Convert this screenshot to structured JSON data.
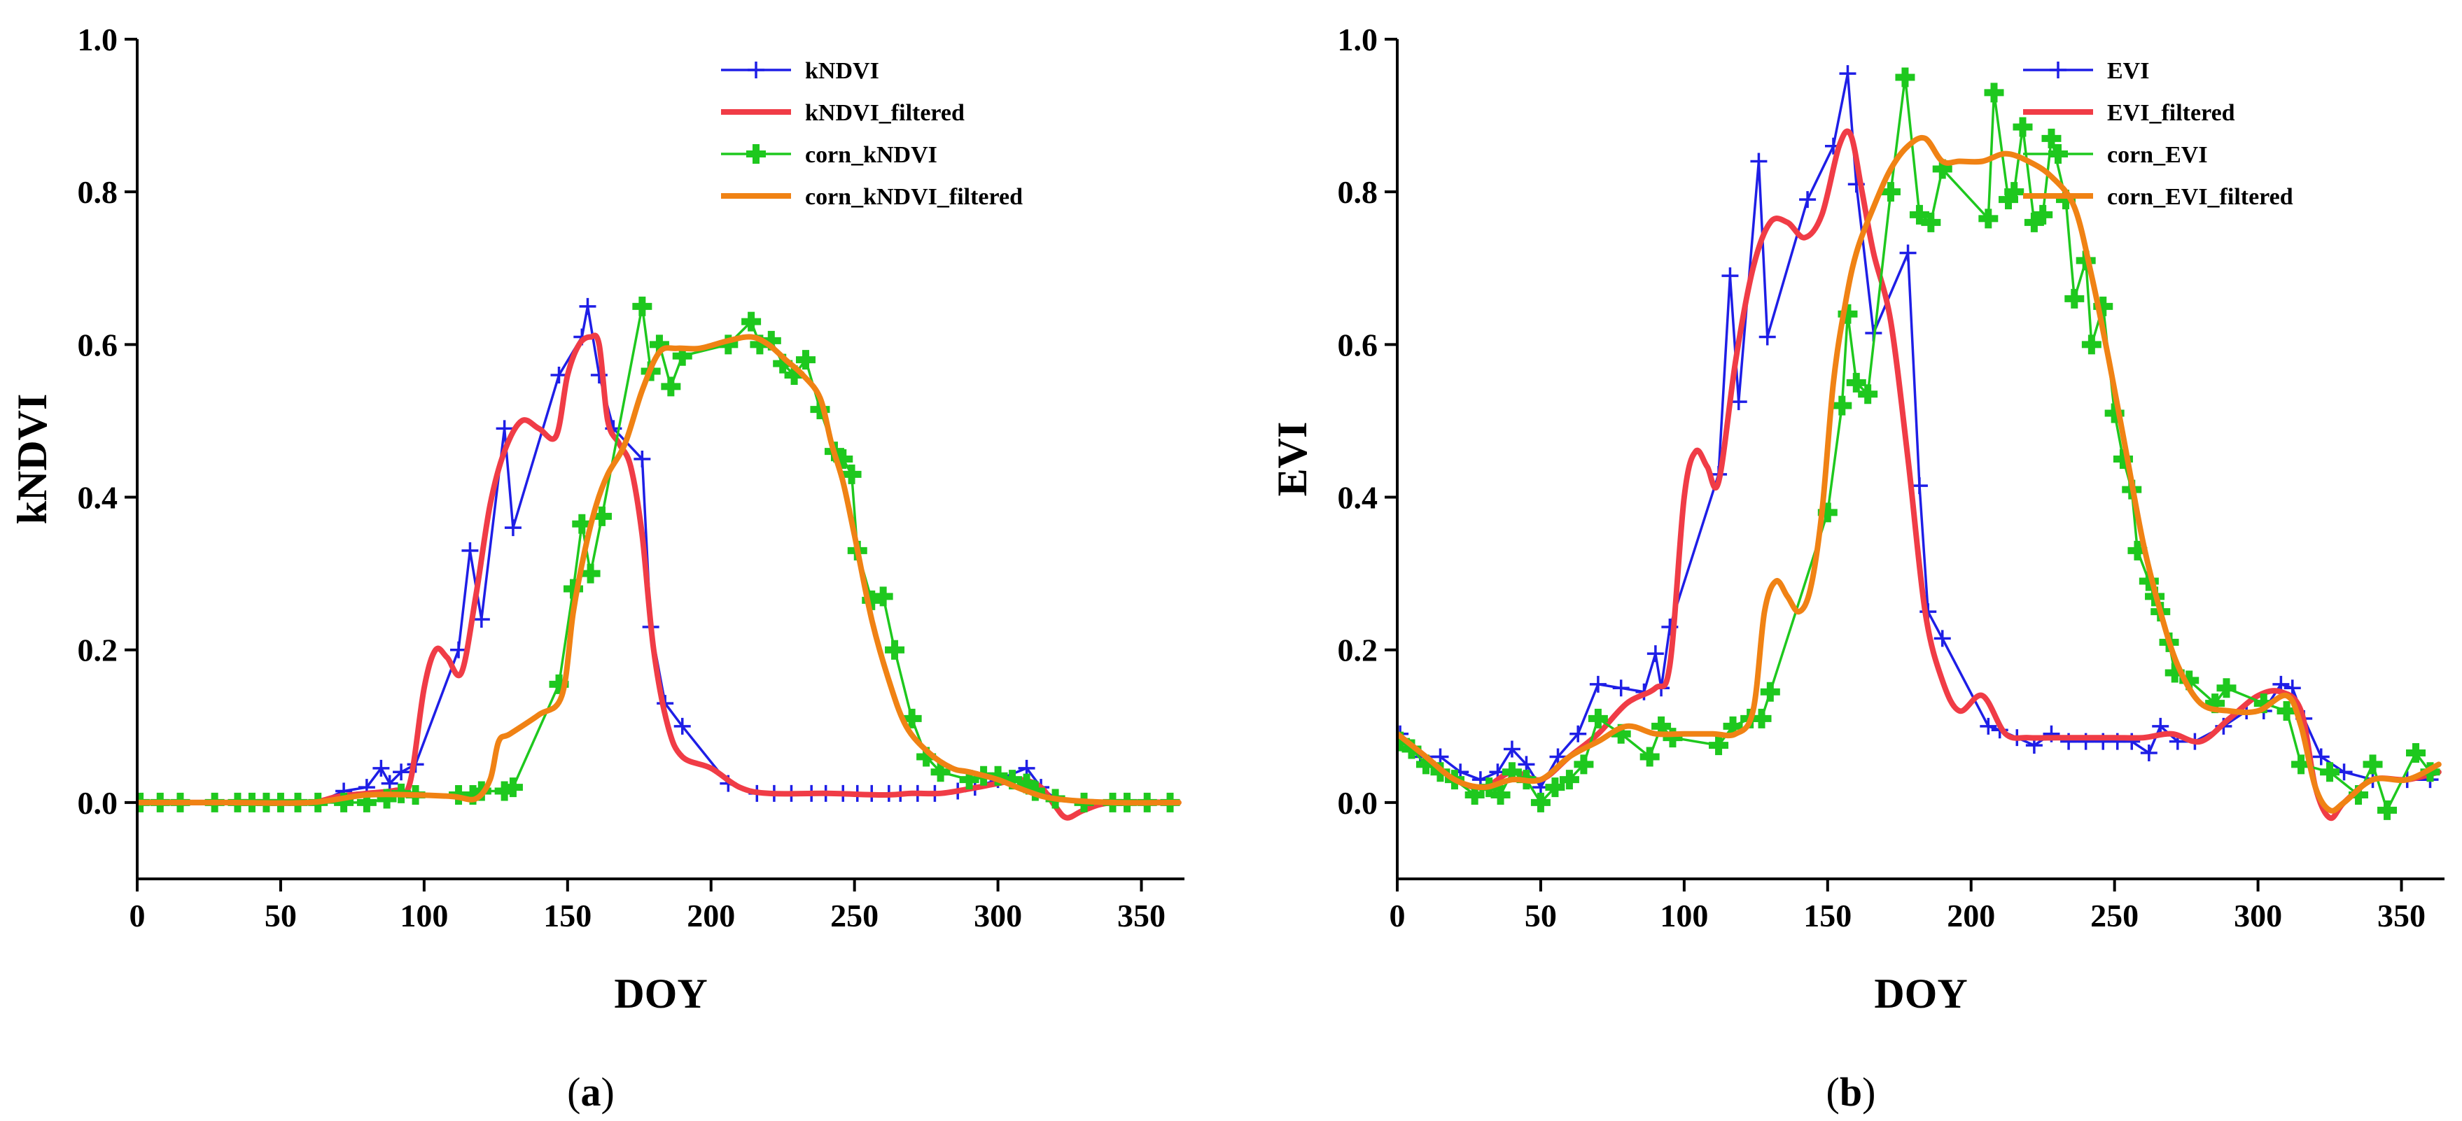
{
  "chart_data": [
    {
      "type": "line",
      "panel_label": "a",
      "xlabel": "DOY",
      "ylabel": "kNDVI",
      "xlim": [
        0,
        365
      ],
      "ylim": [
        -0.1,
        1.0
      ],
      "xticks": [
        "0",
        "50",
        "100",
        "150",
        "200",
        "250",
        "300",
        "350"
      ],
      "xtick_values": [
        0,
        50,
        100,
        150,
        200,
        250,
        300,
        350
      ],
      "yticks": [
        "0.0",
        "0.2",
        "0.4",
        "0.6",
        "0.8",
        "1.0"
      ],
      "ytick_values": [
        0.0,
        0.2,
        0.4,
        0.6,
        0.8,
        1.0
      ],
      "legend_position": "top-right",
      "series": [
        {
          "name": "kNDVI",
          "color": "#1e1ee6",
          "marker": "plus",
          "smooth": false,
          "x": [
            1,
            8,
            15,
            27,
            35,
            40,
            45,
            50,
            56,
            63,
            72,
            80,
            85,
            88,
            92,
            97,
            112,
            116,
            120,
            128,
            131,
            147,
            155,
            157,
            161,
            166,
            176,
            179,
            184,
            190,
            206,
            216,
            222,
            228,
            235,
            240,
            246,
            251,
            256,
            262,
            266,
            272,
            278,
            286,
            292,
            300,
            310,
            315,
            320,
            330,
            340,
            345,
            352,
            360
          ],
          "y": [
            0.0,
            0.0,
            0.0,
            0.0,
            0.0,
            0.0,
            0.0,
            0.0,
            0.0,
            0.0,
            0.015,
            0.02,
            0.045,
            0.025,
            0.04,
            0.05,
            0.2,
            0.33,
            0.24,
            0.49,
            0.36,
            0.56,
            0.61,
            0.65,
            0.56,
            0.49,
            0.45,
            0.23,
            0.13,
            0.1,
            0.025,
            0.012,
            0.012,
            0.012,
            0.012,
            0.012,
            0.012,
            0.012,
            0.012,
            0.012,
            0.012,
            0.012,
            0.012,
            0.015,
            0.02,
            0.03,
            0.045,
            0.02,
            0.005,
            0.0,
            0.0,
            0.0,
            0.0,
            0.0
          ]
        },
        {
          "name": "kNDVI_filtered",
          "color": "#f03c46",
          "marker": "none",
          "smooth": true,
          "x": [
            0,
            20,
            40,
            60,
            70,
            80,
            90,
            95,
            100,
            104,
            108,
            113,
            118,
            123,
            128,
            134,
            140,
            146,
            150,
            154,
            158,
            161,
            164,
            168,
            172,
            176,
            180,
            185,
            190,
            200,
            210,
            220,
            240,
            260,
            270,
            280,
            290,
            300,
            308,
            315,
            320,
            324,
            330,
            340,
            363
          ],
          "y": [
            0.0,
            0.0,
            0.0,
            0.0,
            0.008,
            0.012,
            0.016,
            0.025,
            0.15,
            0.2,
            0.19,
            0.17,
            0.27,
            0.39,
            0.46,
            0.5,
            0.49,
            0.48,
            0.56,
            0.6,
            0.61,
            0.6,
            0.5,
            0.47,
            0.44,
            0.35,
            0.2,
            0.1,
            0.06,
            0.045,
            0.02,
            0.012,
            0.012,
            0.01,
            0.012,
            0.012,
            0.018,
            0.025,
            0.03,
            0.02,
            -0.005,
            -0.02,
            -0.01,
            0.0,
            0.0
          ]
        },
        {
          "name": "corn_kNDVI",
          "color": "#1ec81e",
          "marker": "cross",
          "smooth": false,
          "x": [
            1,
            8,
            15,
            27,
            35,
            40,
            45,
            50,
            56,
            63,
            72,
            80,
            87,
            92,
            97,
            112,
            117,
            120,
            128,
            131,
            147,
            152,
            155,
            158,
            162,
            176,
            179,
            182,
            186,
            190,
            206,
            214,
            217,
            221,
            225,
            229,
            233,
            238,
            243,
            246,
            249,
            251,
            256,
            260,
            264,
            270,
            275,
            280,
            290,
            295,
            300,
            305,
            310,
            313,
            320,
            330,
            340,
            345,
            352,
            360
          ],
          "y": [
            0.0,
            0.0,
            0.0,
            0.0,
            0.0,
            0.0,
            0.0,
            0.0,
            0.0,
            0.0,
            0.0,
            0.0,
            0.005,
            0.012,
            0.01,
            0.01,
            0.01,
            0.015,
            0.015,
            0.02,
            0.155,
            0.28,
            0.365,
            0.3,
            0.375,
            0.65,
            0.565,
            0.6,
            0.545,
            0.585,
            0.6,
            0.63,
            0.6,
            0.605,
            0.575,
            0.56,
            0.58,
            0.515,
            0.46,
            0.45,
            0.43,
            0.33,
            0.265,
            0.27,
            0.2,
            0.11,
            0.06,
            0.04,
            0.03,
            0.035,
            0.035,
            0.03,
            0.025,
            0.015,
            0.005,
            0.0,
            0.0,
            0.0,
            0.0,
            0.0
          ]
        },
        {
          "name": "corn_kNDVI_filtered",
          "color": "#f08214",
          "marker": "none",
          "smooth": true,
          "x": [
            0,
            30,
            60,
            80,
            96,
            110,
            118,
            123,
            126,
            130,
            140,
            148,
            152,
            156,
            160,
            164,
            170,
            176,
            182,
            188,
            196,
            206,
            214,
            220,
            226,
            232,
            238,
            242,
            246,
            250,
            256,
            262,
            268,
            276,
            284,
            290,
            300,
            310,
            320,
            340,
            363
          ],
          "y": [
            0.0,
            0.0,
            0.0,
            0.01,
            0.01,
            0.008,
            0.005,
            0.03,
            0.08,
            0.09,
            0.115,
            0.14,
            0.25,
            0.33,
            0.39,
            0.43,
            0.47,
            0.54,
            0.59,
            0.595,
            0.595,
            0.605,
            0.61,
            0.6,
            0.58,
            0.56,
            0.53,
            0.47,
            0.42,
            0.35,
            0.24,
            0.16,
            0.1,
            0.065,
            0.045,
            0.04,
            0.03,
            0.015,
            0.005,
            0.0,
            0.0
          ]
        }
      ]
    },
    {
      "type": "line",
      "panel_label": "b",
      "xlabel": "DOY",
      "ylabel": "EVI",
      "xlim": [
        0,
        365
      ],
      "ylim": [
        -0.1,
        1.0
      ],
      "xticks": [
        "0",
        "50",
        "100",
        "150",
        "200",
        "250",
        "300",
        "350"
      ],
      "xtick_values": [
        0,
        50,
        100,
        150,
        200,
        250,
        300,
        350
      ],
      "yticks": [
        "0.0",
        "0.2",
        "0.4",
        "0.6",
        "0.8",
        "1.0"
      ],
      "ytick_values": [
        0.0,
        0.2,
        0.4,
        0.6,
        0.8,
        1.0
      ],
      "legend_position": "top-right",
      "series": [
        {
          "name": "EVI",
          "color": "#1e1ee6",
          "marker": "plus",
          "smooth": false,
          "x": [
            1,
            8,
            15,
            22,
            29,
            35,
            40,
            45,
            50,
            56,
            63,
            70,
            78,
            86,
            90,
            92,
            95,
            112,
            116,
            119,
            126,
            129,
            143,
            152,
            157,
            160,
            166,
            178,
            182,
            185,
            190,
            206,
            210,
            216,
            222,
            228,
            234,
            240,
            246,
            251,
            256,
            262,
            266,
            272,
            278,
            288,
            296,
            302,
            308,
            312,
            316,
            322,
            330,
            340,
            352,
            360
          ],
          "y": [
            0.09,
            0.06,
            0.06,
            0.04,
            0.03,
            0.04,
            0.07,
            0.05,
            0.02,
            0.06,
            0.09,
            0.155,
            0.15,
            0.145,
            0.195,
            0.15,
            0.23,
            0.43,
            0.69,
            0.525,
            0.84,
            0.61,
            0.79,
            0.86,
            0.955,
            0.81,
            0.615,
            0.72,
            0.415,
            0.25,
            0.215,
            0.1,
            0.095,
            0.085,
            0.075,
            0.09,
            0.08,
            0.08,
            0.08,
            0.08,
            0.08,
            0.065,
            0.1,
            0.08,
            0.08,
            0.1,
            0.12,
            0.12,
            0.155,
            0.15,
            0.11,
            0.06,
            0.04,
            0.03,
            0.03,
            0.03
          ]
        },
        {
          "name": "EVI_filtered",
          "color": "#f03c46",
          "marker": "none",
          "smooth": true,
          "x": [
            0,
            10,
            20,
            30,
            40,
            50,
            60,
            70,
            80,
            90,
            95,
            100,
            104,
            108,
            112,
            118,
            124,
            130,
            136,
            142,
            148,
            154,
            158,
            162,
            166,
            172,
            178,
            184,
            190,
            196,
            204,
            212,
            220,
            230,
            240,
            250,
            260,
            270,
            280,
            290,
            300,
            308,
            315,
            320,
            325,
            330,
            340,
            352,
            363
          ],
          "y": [
            0.09,
            0.06,
            0.03,
            0.02,
            0.04,
            0.03,
            0.06,
            0.09,
            0.13,
            0.15,
            0.18,
            0.4,
            0.46,
            0.44,
            0.42,
            0.58,
            0.7,
            0.76,
            0.76,
            0.74,
            0.77,
            0.86,
            0.875,
            0.8,
            0.72,
            0.63,
            0.45,
            0.25,
            0.16,
            0.12,
            0.14,
            0.09,
            0.085,
            0.085,
            0.085,
            0.085,
            0.085,
            0.09,
            0.08,
            0.11,
            0.14,
            0.145,
            0.12,
            0.02,
            -0.02,
            0.0,
            0.03,
            0.03,
            0.04
          ]
        },
        {
          "name": "corn_EVI",
          "color": "#1ec81e",
          "marker": "cross",
          "smooth": false,
          "x": [
            1,
            5,
            10,
            15,
            20,
            27,
            32,
            36,
            40,
            45,
            50,
            55,
            60,
            65,
            70,
            78,
            88,
            92,
            96,
            112,
            117,
            123,
            127,
            130,
            150,
            155,
            157,
            160,
            164,
            172,
            177,
            182,
            186,
            190,
            206,
            208,
            213,
            215,
            218,
            222,
            225,
            228,
            233,
            236,
            240,
            242,
            246,
            250,
            253,
            256,
            258,
            262,
            264,
            266,
            269,
            271,
            276,
            285,
            289,
            302,
            310,
            315,
            325,
            335,
            340,
            345,
            355,
            360
          ],
          "y": [
            0.08,
            0.07,
            0.05,
            0.04,
            0.03,
            0.01,
            0.02,
            0.01,
            0.04,
            0.03,
            0.0,
            0.02,
            0.03,
            0.05,
            0.11,
            0.09,
            0.06,
            0.1,
            0.085,
            0.075,
            0.1,
            0.11,
            0.11,
            0.145,
            0.38,
            0.52,
            0.64,
            0.55,
            0.535,
            0.8,
            0.95,
            0.77,
            0.76,
            0.83,
            0.765,
            0.93,
            0.79,
            0.8,
            0.885,
            0.76,
            0.77,
            0.87,
            0.79,
            0.66,
            0.71,
            0.6,
            0.65,
            0.51,
            0.45,
            0.41,
            0.33,
            0.29,
            0.27,
            0.25,
            0.21,
            0.17,
            0.16,
            0.13,
            0.15,
            0.13,
            0.12,
            0.05,
            0.04,
            0.01,
            0.05,
            -0.01,
            0.065,
            0.04
          ]
        },
        {
          "name": "corn_EVI_filtered",
          "color": "#f08214",
          "marker": "none",
          "smooth": true,
          "x": [
            0,
            10,
            20,
            30,
            40,
            50,
            60,
            70,
            80,
            90,
            100,
            110,
            118,
            124,
            128,
            132,
            136,
            140,
            144,
            148,
            152,
            156,
            160,
            166,
            172,
            178,
            184,
            190,
            196,
            204,
            212,
            220,
            228,
            236,
            242,
            248,
            254,
            260,
            266,
            272,
            280,
            290,
            300,
            310,
            315,
            320,
            325,
            330,
            340,
            352,
            363
          ],
          "y": [
            0.09,
            0.06,
            0.03,
            0.02,
            0.03,
            0.03,
            0.06,
            0.08,
            0.1,
            0.09,
            0.09,
            0.09,
            0.09,
            0.12,
            0.25,
            0.29,
            0.27,
            0.25,
            0.28,
            0.38,
            0.55,
            0.65,
            0.72,
            0.78,
            0.83,
            0.86,
            0.87,
            0.84,
            0.84,
            0.84,
            0.85,
            0.84,
            0.82,
            0.78,
            0.69,
            0.58,
            0.46,
            0.34,
            0.25,
            0.18,
            0.13,
            0.12,
            0.12,
            0.14,
            0.1,
            0.02,
            -0.01,
            0.0,
            0.03,
            0.03,
            0.05
          ]
        }
      ]
    }
  ]
}
